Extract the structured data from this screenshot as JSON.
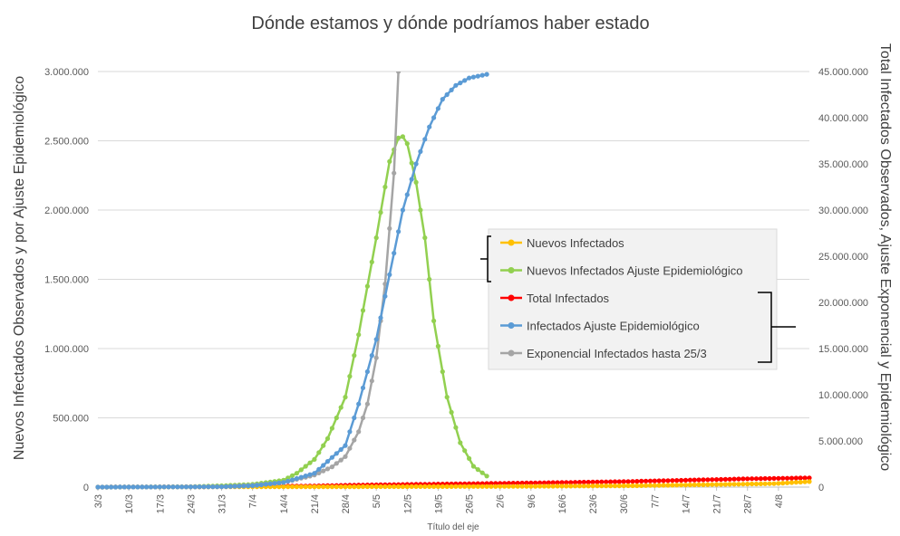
{
  "chart_data": {
    "type": "line",
    "title": "Dónde estamos y dónde podríamos haber estado",
    "xlabel": "Título del eje",
    "ylabel_left": "Nuevos Infectados Observados y por Ajuste Epidemiológico",
    "ylabel_right": "Total Infectados Observados, Ajuste Exponencial y Epidemiológico",
    "ylim_left": [
      0,
      3000000
    ],
    "ylim_right": [
      0,
      45000000
    ],
    "y_ticks_left": [
      "0",
      "500.000",
      "1.000.000",
      "1.500.000",
      "2.000.000",
      "2.500.000",
      "3.000.000"
    ],
    "y_ticks_right": [
      "0",
      "5.000.000",
      "10.000.000",
      "15.000.000",
      "20.000.000",
      "25.000.000",
      "30.000.000",
      "35.000.000",
      "40.000.000",
      "45.000.000"
    ],
    "x_start": "3/3",
    "x_end": "11/8",
    "x_ticks": [
      "3/3",
      "10/3",
      "17/3",
      "24/3",
      "31/3",
      "7/4",
      "14/4",
      "21/4",
      "28/4",
      "5/5",
      "12/5",
      "19/5",
      "26/5",
      "2/6",
      "9/6",
      "16/6",
      "23/6",
      "30/6",
      "7/7",
      "14/7",
      "21/7",
      "28/7",
      "4/8"
    ],
    "grid": true,
    "legend_position": "center-right",
    "legend": {
      "left_axis_bracket": [
        "Nuevos Infectados",
        "Nuevos Infectados Ajuste Epidemiológico"
      ],
      "right_axis_bracket": [
        "Total Infectados",
        "Infectados Ajuste Epidemiológico",
        "Exponencial Infectados hasta 25/3"
      ]
    },
    "series": [
      {
        "name": "Nuevos Infectados",
        "axis": "left",
        "color": "#FFC000",
        "x": [
          "3/3",
          "3/4",
          "3/5",
          "3/6",
          "3/7",
          "3/8",
          "11/8"
        ],
        "values": [
          0,
          2000,
          3000,
          5000,
          10000,
          25000,
          40000
        ]
      },
      {
        "name": "Nuevos Infectados Ajuste Epidemiológico",
        "axis": "left",
        "color": "#92D050",
        "x": [
          "3/3",
          "24/3",
          "31/3",
          "7/4",
          "14/4",
          "17/4",
          "21/4",
          "24/4",
          "28/4",
          "1/5",
          "5/5",
          "8/5",
          "10/5",
          "11/5",
          "12/5",
          "14/5",
          "16/5",
          "18/5",
          "21/5",
          "24/5",
          "27/5",
          "30/5"
        ],
        "values": [
          0,
          3000,
          10000,
          20000,
          50000,
          100000,
          200000,
          350000,
          650000,
          1100000,
          1800000,
          2350000,
          2520000,
          2530000,
          2480000,
          2200000,
          1800000,
          1200000,
          650000,
          320000,
          150000,
          80000
        ]
      },
      {
        "name": "Total Infectados",
        "axis": "right",
        "color": "#FF0000",
        "x": [
          "3/3",
          "31/3",
          "14/4",
          "21/4",
          "28/4",
          "5/5",
          "19/5",
          "2/6",
          "16/6",
          "30/6",
          "14/7",
          "28/7",
          "11/8"
        ],
        "values": [
          1000,
          50000,
          100000,
          130000,
          200000,
          250000,
          330000,
          410000,
          500000,
          600000,
          750000,
          900000,
          1000000
        ]
      },
      {
        "name": "Infectados Ajuste Epidemiológico",
        "axis": "right",
        "color": "#5B9BD5",
        "x": [
          "3/3",
          "31/3",
          "7/4",
          "14/4",
          "21/4",
          "28/4",
          "1/5",
          "5/5",
          "8/5",
          "11/5",
          "14/5",
          "17/5",
          "20/5",
          "23/5",
          "26/5",
          "30/5"
        ],
        "values": [
          0,
          30000,
          150000,
          500000,
          1500000,
          4500000,
          9000000,
          16000000,
          23000000,
          30000000,
          35000000,
          39000000,
          42000000,
          43500000,
          44300000,
          44700000
        ]
      },
      {
        "name": "Exponencial Infectados hasta 25/3",
        "axis": "right",
        "color": "#A5A5A5",
        "x": [
          "3/3",
          "31/3",
          "7/4",
          "14/4",
          "21/4",
          "25/4",
          "28/4",
          "1/5",
          "3/5",
          "5/5",
          "7/5",
          "9/5",
          "10/5"
        ],
        "values": [
          0,
          50000,
          200000,
          500000,
          1300000,
          2200000,
          3300000,
          6000000,
          9000000,
          14000000,
          22000000,
          34000000,
          45000000
        ]
      }
    ]
  }
}
